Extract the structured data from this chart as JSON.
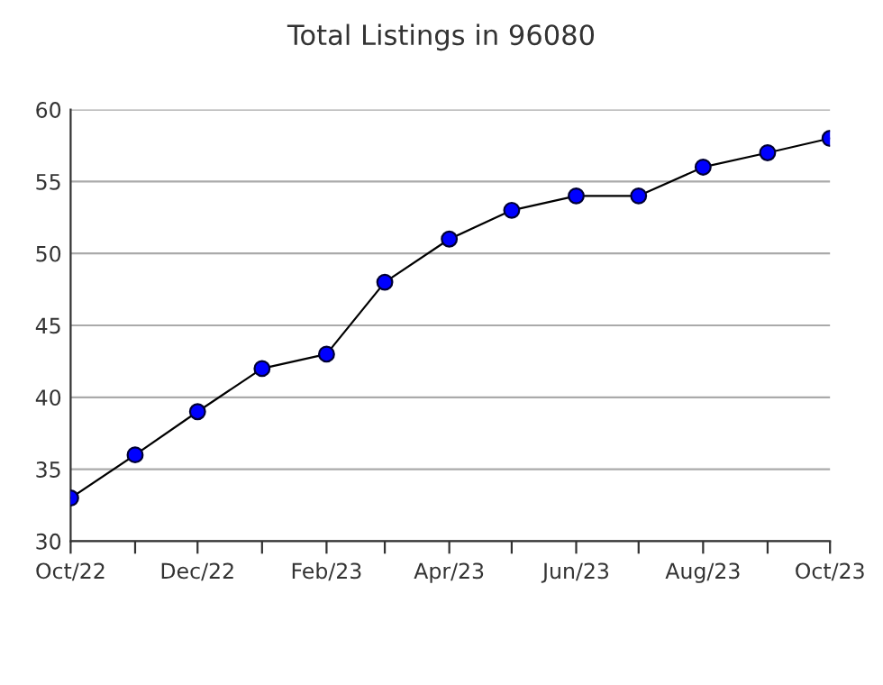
{
  "chart_data": {
    "type": "line",
    "title": "Total Listings in 96080",
    "x": [
      "2022-10",
      "2022-11",
      "2022-12",
      "2023-01",
      "2023-02",
      "2023-03",
      "2023-04",
      "2023-05",
      "2023-06",
      "2023-07",
      "2023-08",
      "2023-09",
      "2023-10"
    ],
    "series": [
      {
        "color": "#0000ff",
        "values": [
          33,
          36,
          39,
          42,
          43,
          48,
          51,
          53,
          54,
          54,
          56,
          57,
          58
        ]
      }
    ],
    "xlim": [
      "2022-10",
      "2023-10"
    ],
    "xticks": [
      {
        "value": "2022-10",
        "label": "Oct/22"
      },
      {
        "value": "2022-11",
        "label": null
      },
      {
        "value": "2022-12",
        "label": "Dec/22"
      },
      {
        "value": "2023-01",
        "label": null
      },
      {
        "value": "2023-02",
        "label": "Feb/23"
      },
      {
        "value": "2023-03",
        "label": null
      },
      {
        "value": "2023-04",
        "label": "Apr/23"
      },
      {
        "value": "2023-05",
        "label": null
      },
      {
        "value": "2023-06",
        "label": "Jun/23"
      },
      {
        "value": "2023-07",
        "label": null
      },
      {
        "value": "2023-08",
        "label": "Aug/23"
      },
      {
        "value": "2023-09",
        "label": null
      },
      {
        "value": "2023-10",
        "label": "Oct/23"
      }
    ],
    "ylim": [
      30,
      60
    ],
    "yticks": [
      30,
      35,
      40,
      45,
      50,
      55,
      60
    ],
    "grid": "y",
    "marker": "circle",
    "line_style": "solid",
    "legend": false
  }
}
